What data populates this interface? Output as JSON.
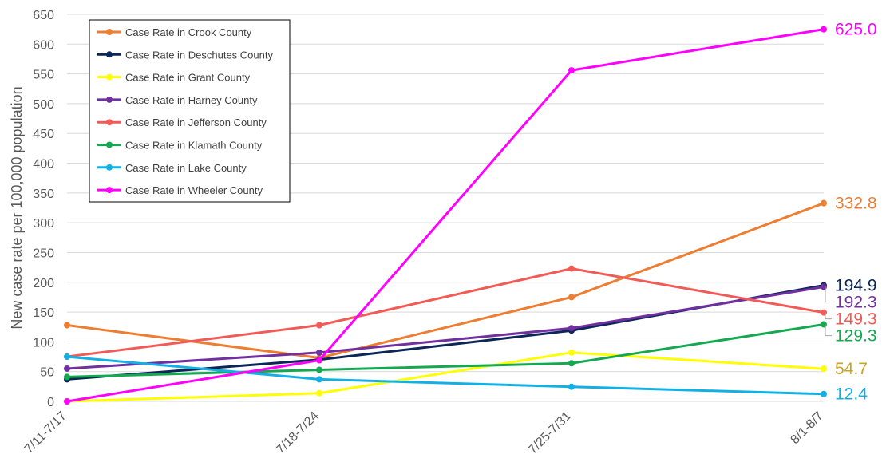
{
  "chart_data": {
    "type": "line",
    "ylabel": "New case rate per 100,000 population",
    "xlabel": "",
    "categories": [
      "7/11-7/17",
      "7/18-7/24",
      "7/25-7/31",
      "8/1-8/7"
    ],
    "ylim": [
      0,
      650
    ],
    "yticks": [
      0,
      50,
      100,
      150,
      200,
      250,
      300,
      350,
      400,
      450,
      500,
      550,
      600,
      650
    ],
    "grid": true,
    "legend_position": "top-left",
    "series": [
      {
        "name": "Case Rate in Crook County",
        "color": "#ED7D31",
        "values": [
          128,
          73,
          175,
          332.8
        ],
        "end_label": "332.8"
      },
      {
        "name": "Case Rate in Deschutes County",
        "color": "#0B2657",
        "values": [
          37,
          70,
          119,
          194.9
        ],
        "end_label": "194.9"
      },
      {
        "name": "Case Rate in Grant County",
        "color": "#FFFF00",
        "values": [
          0,
          13.7,
          82,
          54.7
        ],
        "end_label": "54.7"
      },
      {
        "name": "Case Rate in Harney County",
        "color": "#7030A0",
        "values": [
          55,
          82,
          123,
          192.3
        ],
        "end_label": "192.3"
      },
      {
        "name": "Case Rate in Jefferson County",
        "color": "#F25A55",
        "values": [
          75,
          128,
          223,
          149.3
        ],
        "end_label": "149.3"
      },
      {
        "name": "Case Rate in Klamath County",
        "color": "#14A950",
        "values": [
          41,
          53,
          64,
          129.3
        ],
        "end_label": "129.3"
      },
      {
        "name": "Case Rate in Lake County",
        "color": "#13B0E6",
        "values": [
          75,
          37,
          24.5,
          12.4
        ],
        "end_label": "12.4"
      },
      {
        "name": "Case Rate in Wheeler County",
        "color": "#FF00FF",
        "values": [
          0,
          69,
          556,
          625.0
        ],
        "end_label": "625.0"
      }
    ]
  }
}
